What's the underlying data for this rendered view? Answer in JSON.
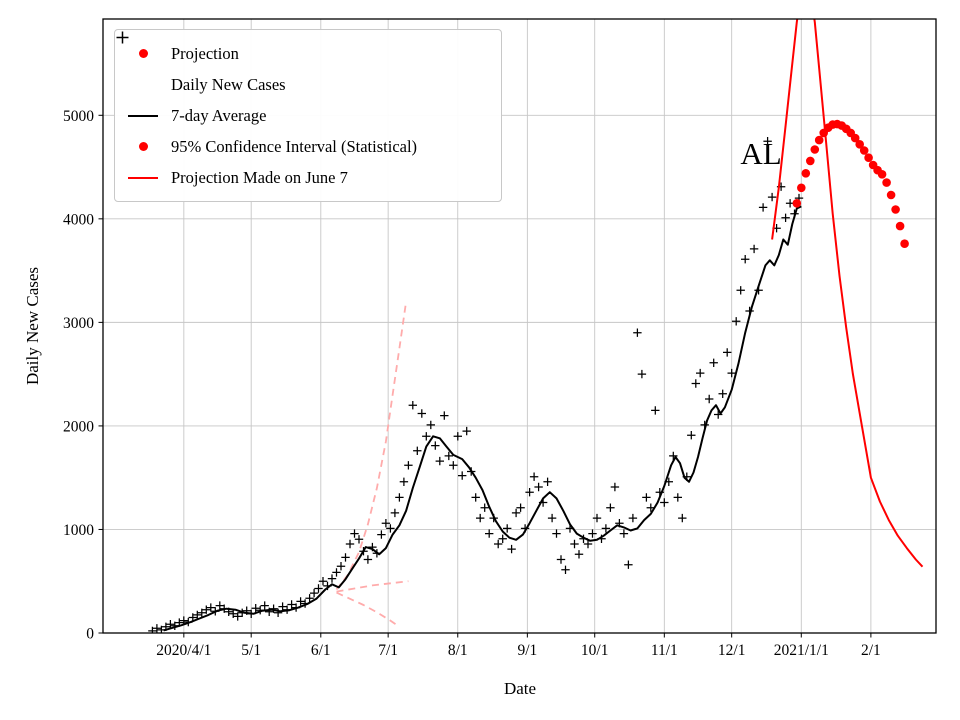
{
  "figure": {
    "background": "#ffffff"
  },
  "annotation": {
    "text": "AL"
  },
  "colors": {
    "daily_cases": "#000000",
    "average_line": "#000000",
    "projection": "#ff0000",
    "june7_projection": "#ff0000",
    "confidence_interval": "#ffabab",
    "grid": "#c6c6c6",
    "frame": "#000000"
  },
  "legend": {
    "items": [
      {
        "label": "Projection",
        "marker": "dot",
        "color": "#ff0000"
      },
      {
        "label": "Daily New Cases",
        "marker": "plus",
        "color": "#000000"
      },
      {
        "label": "7-day Average",
        "marker": "line",
        "color": "#000000"
      },
      {
        "label": "95% Confidence Interval (Statistical)",
        "marker": "dot",
        "color": "#ff0000"
      },
      {
        "label": "Projection Made on June 7",
        "marker": "line",
        "color": "#ff0000"
      }
    ]
  },
  "chart_data": {
    "type": "line",
    "title": "",
    "xlabel": "Date",
    "ylabel": "Daily New Cases",
    "grid": true,
    "legend_position": "upper left",
    "ylim": [
      0,
      5930
    ],
    "x_domain": [
      "2020-02-25",
      "2021-03-02"
    ],
    "y_ticks": [
      0,
      1000,
      2000,
      3000,
      4000,
      5000
    ],
    "x_ticks": [
      {
        "date": "2020-04-01",
        "label": "2020/4/1"
      },
      {
        "date": "2020-05-01",
        "label": "5/1"
      },
      {
        "date": "2020-06-01",
        "label": "6/1"
      },
      {
        "date": "2020-07-01",
        "label": "7/1"
      },
      {
        "date": "2020-08-01",
        "label": "8/1"
      },
      {
        "date": "2020-09-01",
        "label": "9/1"
      },
      {
        "date": "2020-10-01",
        "label": "10/1"
      },
      {
        "date": "2020-11-01",
        "label": "11/1"
      },
      {
        "date": "2020-12-01",
        "label": "12/1"
      },
      {
        "date": "2021-01-01",
        "label": "2021/1/1"
      },
      {
        "date": "2021-02-01",
        "label": "2/1"
      }
    ],
    "series": [
      {
        "name": "95% CI Upper (June 7)",
        "kind": "dashed-line",
        "color": "#ffabab",
        "width": 1.8,
        "points": [
          [
            "2020-06-08",
            420
          ],
          [
            "2020-06-13",
            560
          ],
          [
            "2020-06-18",
            780
          ],
          [
            "2020-06-22",
            1050
          ],
          [
            "2020-06-26",
            1400
          ],
          [
            "2020-06-30",
            1850
          ],
          [
            "2020-07-03",
            2300
          ],
          [
            "2020-07-06",
            2750
          ],
          [
            "2020-07-09",
            3200
          ]
        ]
      },
      {
        "name": "95% CI Mid (June 7)",
        "kind": "dashed-line",
        "color": "#ffabab",
        "width": 1.8,
        "points": [
          [
            "2020-06-08",
            400
          ],
          [
            "2020-06-16",
            430
          ],
          [
            "2020-06-24",
            460
          ],
          [
            "2020-07-02",
            480
          ],
          [
            "2020-07-10",
            500
          ]
        ]
      },
      {
        "name": "95% CI Lower (June 7)",
        "kind": "dashed-line",
        "color": "#ffabab",
        "width": 1.8,
        "points": [
          [
            "2020-06-08",
            390
          ],
          [
            "2020-06-14",
            330
          ],
          [
            "2020-06-20",
            270
          ],
          [
            "2020-06-26",
            200
          ],
          [
            "2020-07-02",
            120
          ],
          [
            "2020-07-06",
            60
          ]
        ]
      },
      {
        "name": "Daily New Cases",
        "kind": "scatter-plus",
        "color": "#000000",
        "start": "2020-03-18",
        "step_days": 2,
        "values": [
          20,
          45,
          30,
          60,
          85,
          70,
          100,
          120,
          105,
          150,
          175,
          195,
          225,
          245,
          210,
          265,
          235,
          205,
          185,
          160,
          195,
          215,
          185,
          240,
          220,
          265,
          205,
          235,
          195,
          255,
          225,
          275,
          245,
          305,
          285,
          335,
          385,
          430,
          500,
          455,
          525,
          585,
          645,
          730,
          860,
          960,
          905,
          790,
          710,
          830,
          770,
          950,
          1060,
          1010,
          1160,
          1310,
          1460,
          1620,
          2200,
          1760,
          2120,
          1900,
          2010,
          1810,
          1660,
          2100,
          1710,
          1620,
          1900,
          1520,
          1950,
          1560,
          1310,
          1110,
          1210,
          960,
          1110,
          860,
          910,
          1010,
          810,
          1160,
          1210,
          1010,
          1360,
          1510,
          1410,
          1260,
          1460,
          1110,
          960,
          710,
          610,
          1010,
          860,
          760,
          910,
          860,
          960,
          1110,
          910,
          1010,
          1210,
          1410,
          1060,
          960,
          660,
          1110,
          2900,
          2500,
          1310,
          1210,
          2150,
          1360,
          1260,
          1460,
          1710,
          1310,
          1110,
          1510,
          1910,
          2410,
          2510,
          2010,
          2260,
          2610,
          2110,
          2310,
          2710,
          2510,
          3010,
          3310,
          3610,
          3110,
          3710,
          3310,
          4110,
          4750,
          4210,
          3910,
          4310,
          4010,
          4150,
          4050,
          4200
        ]
      },
      {
        "name": "7-day Average",
        "kind": "line",
        "color": "#000000",
        "width": 2,
        "points": [
          [
            "2020-03-23",
            25
          ],
          [
            "2020-03-27",
            50
          ],
          [
            "2020-03-31",
            75
          ],
          [
            "2020-04-04",
            105
          ],
          [
            "2020-04-08",
            140
          ],
          [
            "2020-04-12",
            175
          ],
          [
            "2020-04-16",
            215
          ],
          [
            "2020-04-20",
            235
          ],
          [
            "2020-04-24",
            225
          ],
          [
            "2020-04-28",
            195
          ],
          [
            "2020-05-02",
            185
          ],
          [
            "2020-05-06",
            215
          ],
          [
            "2020-05-10",
            225
          ],
          [
            "2020-05-14",
            210
          ],
          [
            "2020-05-18",
            220
          ],
          [
            "2020-05-22",
            245
          ],
          [
            "2020-05-26",
            280
          ],
          [
            "2020-05-30",
            330
          ],
          [
            "2020-06-03",
            420
          ],
          [
            "2020-06-06",
            470
          ],
          [
            "2020-06-09",
            440
          ],
          [
            "2020-06-12",
            520
          ],
          [
            "2020-06-15",
            620
          ],
          [
            "2020-06-18",
            720
          ],
          [
            "2020-06-21",
            830
          ],
          [
            "2020-06-24",
            810
          ],
          [
            "2020-06-27",
            760
          ],
          [
            "2020-06-30",
            820
          ],
          [
            "2020-07-03",
            950
          ],
          [
            "2020-07-06",
            1040
          ],
          [
            "2020-07-09",
            1180
          ],
          [
            "2020-07-12",
            1400
          ],
          [
            "2020-07-15",
            1600
          ],
          [
            "2020-07-18",
            1800
          ],
          [
            "2020-07-21",
            1900
          ],
          [
            "2020-07-24",
            1880
          ],
          [
            "2020-07-27",
            1800
          ],
          [
            "2020-07-30",
            1720
          ],
          [
            "2020-08-03",
            1680
          ],
          [
            "2020-08-06",
            1600
          ],
          [
            "2020-08-09",
            1500
          ],
          [
            "2020-08-12",
            1380
          ],
          [
            "2020-08-15",
            1220
          ],
          [
            "2020-08-18",
            1080
          ],
          [
            "2020-08-21",
            980
          ],
          [
            "2020-08-24",
            920
          ],
          [
            "2020-08-27",
            900
          ],
          [
            "2020-08-30",
            950
          ],
          [
            "2020-09-02",
            1060
          ],
          [
            "2020-09-05",
            1180
          ],
          [
            "2020-09-08",
            1300
          ],
          [
            "2020-09-11",
            1360
          ],
          [
            "2020-09-14",
            1300
          ],
          [
            "2020-09-17",
            1180
          ],
          [
            "2020-09-20",
            1050
          ],
          [
            "2020-09-23",
            960
          ],
          [
            "2020-09-26",
            920
          ],
          [
            "2020-09-29",
            890
          ],
          [
            "2020-10-02",
            900
          ],
          [
            "2020-10-05",
            940
          ],
          [
            "2020-10-08",
            990
          ],
          [
            "2020-10-11",
            1040
          ],
          [
            "2020-10-14",
            1020
          ],
          [
            "2020-10-17",
            990
          ],
          [
            "2020-10-20",
            1010
          ],
          [
            "2020-10-23",
            1090
          ],
          [
            "2020-10-26",
            1150
          ],
          [
            "2020-10-29",
            1260
          ],
          [
            "2020-11-01",
            1420
          ],
          [
            "2020-11-04",
            1620
          ],
          [
            "2020-11-06",
            1700
          ],
          [
            "2020-11-08",
            1640
          ],
          [
            "2020-11-10",
            1500
          ],
          [
            "2020-11-12",
            1460
          ],
          [
            "2020-11-14",
            1550
          ],
          [
            "2020-11-16",
            1700
          ],
          [
            "2020-11-18",
            1880
          ],
          [
            "2020-11-20",
            2050
          ],
          [
            "2020-11-22",
            2150
          ],
          [
            "2020-11-24",
            2200
          ],
          [
            "2020-11-26",
            2120
          ],
          [
            "2020-11-28",
            2180
          ],
          [
            "2020-12-01",
            2350
          ],
          [
            "2020-12-04",
            2600
          ],
          [
            "2020-12-07",
            2900
          ],
          [
            "2020-12-10",
            3150
          ],
          [
            "2020-12-13",
            3350
          ],
          [
            "2020-12-16",
            3550
          ],
          [
            "2020-12-18",
            3600
          ],
          [
            "2020-12-20",
            3550
          ],
          [
            "2020-12-22",
            3650
          ],
          [
            "2020-12-24",
            3800
          ],
          [
            "2020-12-26",
            3750
          ],
          [
            "2020-12-28",
            3950
          ],
          [
            "2020-12-30",
            4100
          ],
          [
            "2021-01-01",
            4120
          ]
        ]
      },
      {
        "name": "Projection Made on June 7",
        "kind": "line",
        "color": "#ff0000",
        "width": 2,
        "points": [
          [
            "2020-12-19",
            3800
          ],
          [
            "2020-12-22",
            4300
          ],
          [
            "2020-12-25",
            4900
          ],
          [
            "2020-12-28",
            5500
          ],
          [
            "2020-12-30",
            5900
          ],
          [
            "2021-01-01",
            6200
          ],
          [
            "2021-01-03",
            6320
          ],
          [
            "2021-01-05",
            6200
          ],
          [
            "2021-01-07",
            5900
          ],
          [
            "2021-01-09",
            5450
          ],
          [
            "2021-01-12",
            4750
          ],
          [
            "2021-01-15",
            4050
          ],
          [
            "2021-01-18",
            3450
          ],
          [
            "2021-01-21",
            2950
          ],
          [
            "2021-01-24",
            2500
          ],
          [
            "2021-01-28",
            2000
          ],
          [
            "2021-02-01",
            1500
          ],
          [
            "2021-02-05",
            1270
          ],
          [
            "2021-02-09",
            1090
          ],
          [
            "2021-02-13",
            940
          ],
          [
            "2021-02-17",
            820
          ],
          [
            "2021-02-21",
            710
          ],
          [
            "2021-02-24",
            640
          ]
        ]
      },
      {
        "name": "Projection",
        "kind": "dotted-thick",
        "color": "#ff0000",
        "start": "2020-12-30",
        "step_days": 2,
        "values": [
          4150,
          4300,
          4440,
          4560,
          4670,
          4760,
          4830,
          4880,
          4910,
          4915,
          4900,
          4870,
          4830,
          4780,
          4720,
          4660,
          4590,
          4520,
          4470,
          4430,
          4350,
          4230,
          4090,
          3930,
          3760
        ]
      }
    ]
  }
}
